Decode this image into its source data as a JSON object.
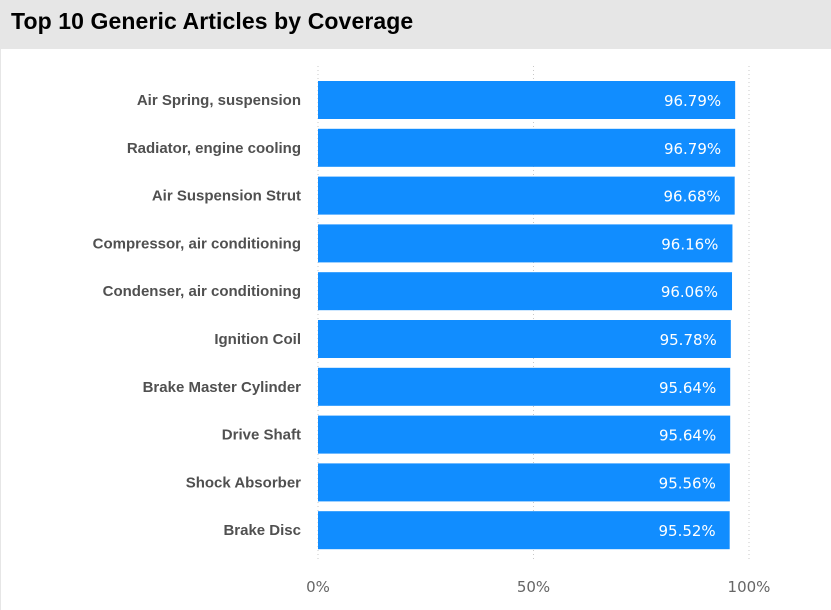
{
  "title": "Top 10 Generic Articles by Coverage",
  "colors": {
    "bar": "#118DFF",
    "title_bar_bg": "#E6E6E6",
    "grid": "#C8C8C8"
  },
  "chart_data": {
    "type": "bar",
    "orientation": "horizontal",
    "title": "Top 10 Generic Articles by Coverage",
    "categories": [
      "Air Spring, suspension",
      "Radiator, engine cooling",
      "Air Suspension Strut",
      "Compressor, air conditioning",
      "Condenser, air conditioning",
      "Ignition Coil",
      "Brake Master Cylinder",
      "Drive Shaft",
      "Shock Absorber",
      "Brake Disc"
    ],
    "values": [
      96.79,
      96.79,
      96.68,
      96.16,
      96.06,
      95.78,
      95.64,
      95.64,
      95.56,
      95.52
    ],
    "value_labels": [
      "96.79%",
      "96.79%",
      "96.68%",
      "96.16%",
      "96.06%",
      "95.78%",
      "95.64%",
      "95.64%",
      "95.56%",
      "95.52%"
    ],
    "xlim": [
      0,
      100
    ],
    "x_ticks": [
      "0%",
      "50%",
      "100%"
    ],
    "xlabel": "",
    "ylabel": "",
    "grid": "vertical-dotted",
    "legend": "none"
  }
}
